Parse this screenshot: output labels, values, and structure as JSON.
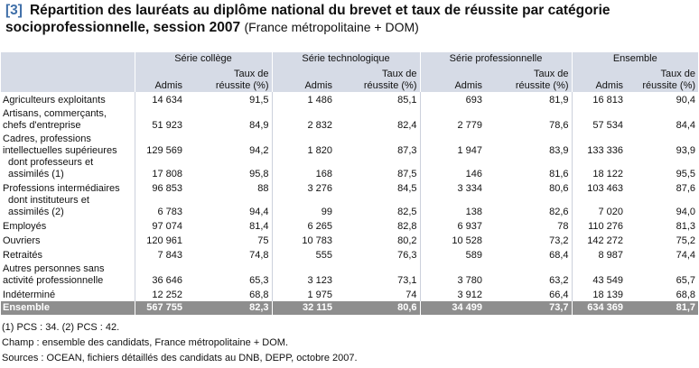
{
  "title": {
    "number": "[3]",
    "line1": "Répartition des lauréats au diplôme national du brevet et taux de réussite par catégorie",
    "line2": "socioprofessionnelle, session 2007",
    "scope": "(France métropolitaine + DOM)"
  },
  "table": {
    "groups": [
      "Série collège",
      "Série technologique",
      "Série professionnelle",
      "Ensemble"
    ],
    "col_admis": "Admis",
    "col_taux_line1": "Taux de",
    "col_taux_line2": "réussite (%)",
    "rows": [
      {
        "label": "Agriculteurs exploitants",
        "values": [
          "14 634",
          "91,5",
          "1 486",
          "85,1",
          "693",
          "81,9",
          "16 813",
          "90,4"
        ]
      },
      {
        "label": "Artisans, commerçants, chefs d'entreprise",
        "values": [
          "51 923",
          "84,9",
          "2 832",
          "82,4",
          "2 779",
          "78,6",
          "57 534",
          "84,4"
        ]
      },
      {
        "label": "Cadres, professions intellectuelles supérieures",
        "values": [
          "129 569",
          "94,2",
          "1 820",
          "87,3",
          "1 947",
          "83,9",
          "133 336",
          "93,9"
        ]
      },
      {
        "label": "dont professeurs et assimilés (1)",
        "values": [
          "17 808",
          "95,8",
          "168",
          "87,5",
          "146",
          "81,6",
          "18 122",
          "95,5"
        ]
      },
      {
        "label": "Professions intermédiaires",
        "values": [
          "96 853",
          "88",
          "3 276",
          "84,5",
          "3 334",
          "80,6",
          "103 463",
          "87,6"
        ]
      },
      {
        "label": "dont instituteurs et assimilés (2)",
        "values": [
          "6 783",
          "94,4",
          "99",
          "82,5",
          "138",
          "82,6",
          "7 020",
          "94,0"
        ]
      },
      {
        "label": "Employés",
        "values": [
          "97 074",
          "81,4",
          "6 265",
          "82,8",
          "6 937",
          "78",
          "110 276",
          "81,3"
        ]
      },
      {
        "label": "Ouvriers",
        "values": [
          "120 961",
          "75",
          "10 783",
          "80,2",
          "10 528",
          "73,2",
          "142 272",
          "75,2"
        ]
      },
      {
        "label": "Retraités",
        "values": [
          "7 843",
          "74,8",
          "555",
          "76,3",
          "589",
          "68,4",
          "8 987",
          "74,4"
        ]
      },
      {
        "label": "Autres personnes sans activité professionnelle",
        "values": [
          "36 646",
          "65,3",
          "3 123",
          "73,1",
          "3 780",
          "63,2",
          "43 549",
          "65,7"
        ]
      },
      {
        "label": "Indéterminé",
        "values": [
          "12 252",
          "68,8",
          "1 975",
          "74",
          "3 912",
          "66,4",
          "18 139",
          "68,8"
        ]
      }
    ],
    "total": {
      "label": "Ensemble",
      "values": [
        "567 755",
        "82,3",
        "32 115",
        "80,6",
        "34 499",
        "73,7",
        "634 369",
        "81,7"
      ]
    }
  },
  "notes": [
    "(1) PCS : 34. (2) PCS : 42.",
    "Champ : ensemble des candidats, France métropolitaine + DOM.",
    "Sources : OCEAN, fichiers détaillés des candidats au DNB, DEPP, octobre 2007."
  ],
  "colors": {
    "header_bg": "#d6dbe6",
    "total_bg": "#8e8e8e",
    "number_accent": "#3f6fa8"
  }
}
